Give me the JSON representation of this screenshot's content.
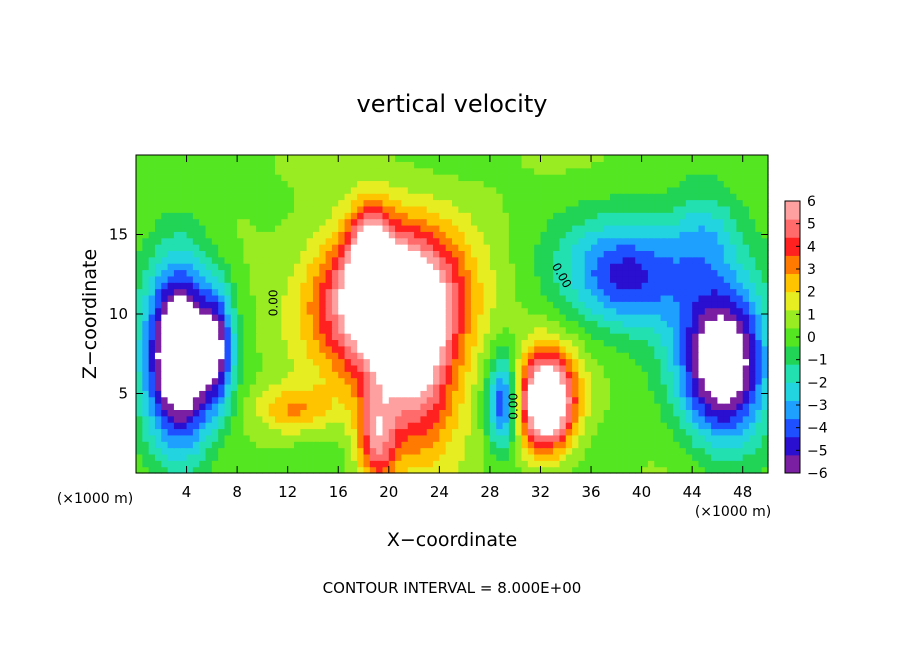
{
  "chart_data": {
    "type": "heatmap",
    "title": "vertical velocity",
    "xlabel": "X−coordinate",
    "ylabel": "Z−coordinate",
    "x_unit_left": "(×1000 m)",
    "x_unit_right": "(×1000 m)",
    "footer": "CONTOUR INTERVAL = 8.000E+00",
    "xlim": [
      0,
      50
    ],
    "ylim": [
      0,
      20
    ],
    "x_ticks": [
      4,
      8,
      12,
      16,
      20,
      24,
      28,
      32,
      36,
      40,
      44,
      48
    ],
    "y_ticks": [
      5,
      10,
      15
    ],
    "colorbar": {
      "ticks": [
        6,
        5,
        4,
        3,
        2,
        1,
        0,
        -1,
        -2,
        -3,
        -4,
        -5,
        -6
      ],
      "tick_labels": [
        "6",
        "5",
        "4",
        "3",
        "2",
        "1",
        "0",
        "−1",
        "−2",
        "−3",
        "−4",
        "−5",
        "−6"
      ],
      "range": [
        -6,
        6
      ],
      "colors": [
        "#7a1fa2",
        "#2a0fd0",
        "#1e50ff",
        "#1ea0ff",
        "#22d4e0",
        "#22e0b0",
        "#22d455",
        "#55e622",
        "#9aec22",
        "#e6ee22",
        "#ffc400",
        "#ff7a00",
        "#ff2020",
        "#ff6a6a",
        "#ffa0a0"
      ]
    },
    "contour_labels": [
      "0.00",
      "0.00",
      "0.00"
    ],
    "features": [
      {
        "kind": "updraft",
        "x": 20,
        "z": 11,
        "sx": 5.5,
        "sz": 4.5,
        "amp": 9
      },
      {
        "kind": "updraft",
        "x": 18.5,
        "z": 14.5,
        "sx": 1.5,
        "sz": 2.5,
        "amp": 4
      },
      {
        "kind": "updraft",
        "x": 22,
        "z": 6,
        "sx": 3.5,
        "sz": 5,
        "amp": 5
      },
      {
        "kind": "updraft",
        "x": 19,
        "z": 2,
        "sx": 1.5,
        "sz": 3,
        "amp": 4
      },
      {
        "kind": "updraft",
        "x": 32.5,
        "z": 4.5,
        "sx": 2.2,
        "sz": 3,
        "amp": 9
      },
      {
        "kind": "updraft",
        "x": 12.5,
        "z": 4,
        "sx": 3,
        "sz": 1.5,
        "amp": 2.5
      },
      {
        "kind": "downdraft",
        "x": 3.5,
        "z": 7.5,
        "sx": 2.8,
        "sz": 6,
        "amp": 9
      },
      {
        "kind": "downdraft",
        "x": 6.5,
        "z": 8,
        "sx": 1.2,
        "sz": 3.5,
        "amp": 4
      },
      {
        "kind": "downdraft",
        "x": 46.5,
        "z": 7,
        "sx": 3.5,
        "sz": 5,
        "amp": 8
      },
      {
        "kind": "downdraft",
        "x": 39,
        "z": 12.5,
        "sx": 5,
        "sz": 3.5,
        "amp": 5
      },
      {
        "kind": "downdraft",
        "x": 29,
        "z": 4.5,
        "sx": 1.2,
        "sz": 3,
        "amp": 5
      },
      {
        "kind": "downdraft",
        "x": 45,
        "z": 15,
        "sx": 3,
        "sz": 3,
        "amp": 2.5
      }
    ]
  }
}
